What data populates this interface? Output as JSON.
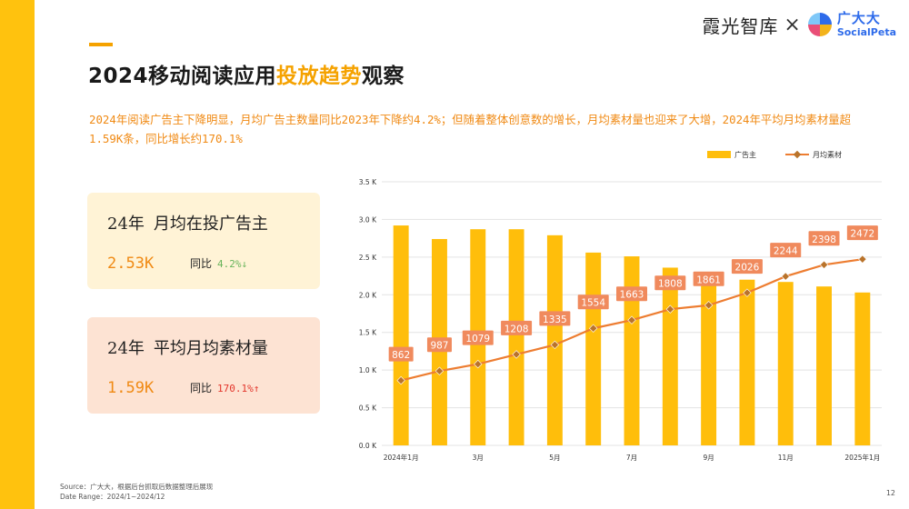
{
  "header": {
    "title_prefix": "2024移动阅读应用",
    "title_highlight": "投放趋势",
    "title_suffix": "观察",
    "brand_name": "霞光智库",
    "brand_separator": "×",
    "partner_cn": "广大大",
    "partner_en": "SocialPeta"
  },
  "summary": "2024年阅读广告主下降明显，月均广告主数量同比2023年下降约4.2%；但随着整体创意数的增长，月均素材量也迎来了大增，2024年平均月均素材量超1.59K条，同比增长约170.1%",
  "cards": [
    {
      "title_year": "24年",
      "title_label": "月均在投广告主",
      "value": "2.53K",
      "yoy_label": "同比",
      "yoy_value": "4.2%↓"
    },
    {
      "title_year": "24年",
      "title_label": "平均月均素材量",
      "value": "1.59K",
      "yoy_label": "同比",
      "yoy_value": "170.1%↑"
    }
  ],
  "chart_data": {
    "type": "bar+line",
    "categories": [
      "2024年1月",
      "2月",
      "3月",
      "4月",
      "5月",
      "6月",
      "7月",
      "8月",
      "9月",
      "10月",
      "11月",
      "12月",
      "2025年1月"
    ],
    "x_tick_labels": [
      "2024年1月",
      "",
      "3月",
      "",
      "5月",
      "",
      "7月",
      "",
      "9月",
      "",
      "11月",
      "",
      "2025年1月"
    ],
    "series": [
      {
        "name": "广告主",
        "kind": "bar",
        "values": [
          2920,
          2740,
          2870,
          2870,
          2790,
          2560,
          2510,
          2360,
          2300,
          2200,
          2170,
          2110,
          2030
        ]
      },
      {
        "name": "月均素材",
        "kind": "line",
        "values": [
          862,
          987,
          1079,
          1208,
          1335,
          1554,
          1663,
          1808,
          1861,
          2026,
          2244,
          2398,
          2472
        ]
      }
    ],
    "y_tick_labels": [
      "0.0 K",
      "0.5 K",
      "1.0 K",
      "1.5 K",
      "2.0 K",
      "2.5 K",
      "3.0 K",
      "3.5 K"
    ],
    "ylim": [
      0,
      3500
    ],
    "legend_position": "top-right",
    "grid": true,
    "bar_color": "#FFBE0B",
    "line_color": "#ED7D31",
    "label_bg_color": "#F08A5D",
    "xlabel": "",
    "ylabel": ""
  },
  "footer": {
    "source": "Source：广大大，根据后台抓取后数据整理后展现",
    "date_range": "Date Range：2024/1~2024/12"
  },
  "page_number": "12",
  "colors": {
    "accent": "#FFC20E",
    "orange_text": "#F08A14",
    "card1_bg": "#FFF3D6",
    "card2_bg": "#FDE3D3"
  }
}
